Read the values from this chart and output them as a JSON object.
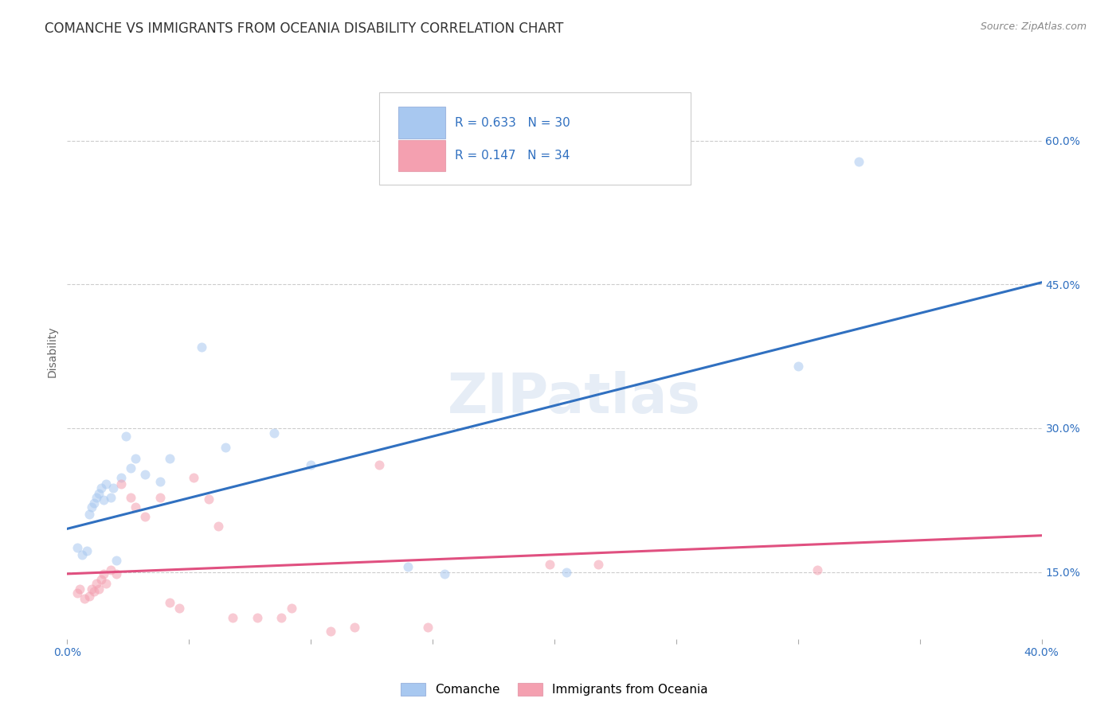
{
  "title": "COMANCHE VS IMMIGRANTS FROM OCEANIA DISABILITY CORRELATION CHART",
  "source": "Source: ZipAtlas.com",
  "ylabel": "Disability",
  "watermark": "ZIPatlas",
  "legend_text_row1": "R = 0.633   N = 30",
  "legend_text_row2": "R = 0.147   N = 34",
  "legend_label_blue": "Comanche",
  "legend_label_pink": "Immigrants from Oceania",
  "y_ticks": [
    0.15,
    0.3,
    0.45,
    0.6
  ],
  "y_tick_labels": [
    "15.0%",
    "30.0%",
    "45.0%",
    "60.0%"
  ],
  "x_lim": [
    0.0,
    0.4
  ],
  "y_lim": [
    0.08,
    0.68
  ],
  "blue_scatter_x": [
    0.004,
    0.006,
    0.008,
    0.009,
    0.01,
    0.011,
    0.012,
    0.013,
    0.014,
    0.015,
    0.016,
    0.018,
    0.019,
    0.02,
    0.022,
    0.024,
    0.026,
    0.028,
    0.032,
    0.038,
    0.042,
    0.055,
    0.065,
    0.085,
    0.1,
    0.14,
    0.155,
    0.205,
    0.3,
    0.325
  ],
  "blue_scatter_y": [
    0.175,
    0.168,
    0.172,
    0.21,
    0.218,
    0.222,
    0.228,
    0.232,
    0.238,
    0.225,
    0.242,
    0.228,
    0.238,
    0.162,
    0.248,
    0.292,
    0.258,
    0.268,
    0.252,
    0.244,
    0.268,
    0.385,
    0.28,
    0.295,
    0.262,
    0.155,
    0.148,
    0.15,
    0.365,
    0.578
  ],
  "pink_scatter_x": [
    0.004,
    0.005,
    0.007,
    0.009,
    0.01,
    0.011,
    0.012,
    0.013,
    0.014,
    0.015,
    0.016,
    0.018,
    0.02,
    0.022,
    0.026,
    0.028,
    0.032,
    0.038,
    0.042,
    0.046,
    0.052,
    0.058,
    0.062,
    0.068,
    0.078,
    0.088,
    0.092,
    0.108,
    0.118,
    0.128,
    0.148,
    0.198,
    0.218,
    0.308
  ],
  "pink_scatter_y": [
    0.128,
    0.132,
    0.122,
    0.125,
    0.132,
    0.13,
    0.138,
    0.132,
    0.142,
    0.148,
    0.138,
    0.152,
    0.148,
    0.242,
    0.228,
    0.218,
    0.208,
    0.228,
    0.118,
    0.112,
    0.248,
    0.226,
    0.198,
    0.102,
    0.102,
    0.102,
    0.112,
    0.088,
    0.092,
    0.262,
    0.092,
    0.158,
    0.158,
    0.152
  ],
  "blue_line_x": [
    0.0,
    0.4
  ],
  "blue_line_y": [
    0.195,
    0.452
  ],
  "pink_line_x": [
    0.0,
    0.4
  ],
  "pink_line_y": [
    0.148,
    0.188
  ],
  "scatter_size": 75,
  "scatter_alpha": 0.55,
  "blue_color": "#a8c8f0",
  "pink_color": "#f4a0b0",
  "blue_line_color": "#3070c0",
  "pink_line_color": "#e05080",
  "legend_text_color": "#3070c0",
  "background_color": "#ffffff",
  "grid_color": "#cccccc",
  "title_color": "#333333",
  "title_fontsize": 12,
  "axis_label_fontsize": 10,
  "tick_fontsize": 10,
  "source_fontsize": 9
}
